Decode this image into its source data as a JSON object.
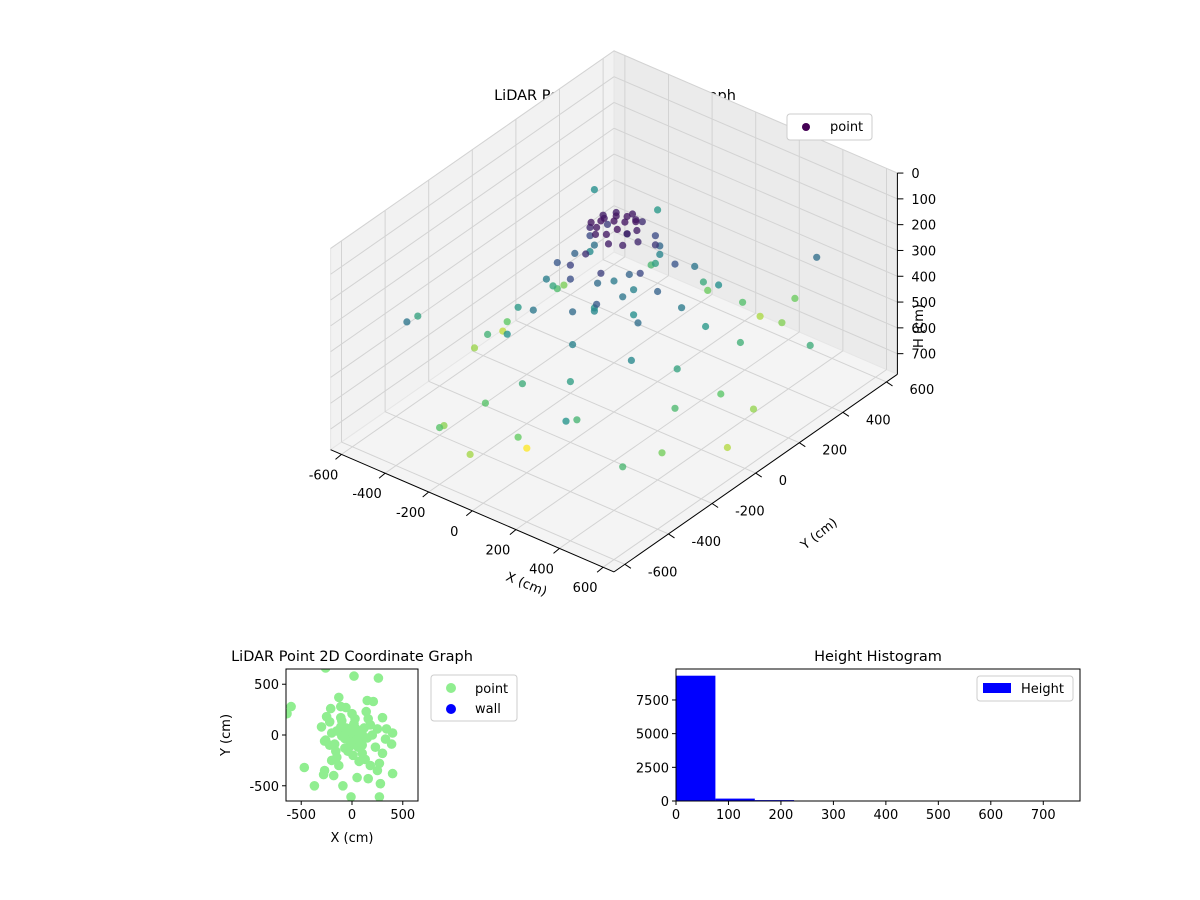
{
  "chart_data": [
    {
      "type": "scatter3d",
      "title": "LiDAR Point 3D Coordinate Graph",
      "xlabel": "X (cm)",
      "ylabel": "Y (cm)",
      "zlabel": "H (cm)",
      "xlim": [
        -650,
        650
      ],
      "ylim": [
        -650,
        650
      ],
      "zlim": [
        0,
        780
      ],
      "z_inverted": true,
      "xticks": [
        -600,
        -400,
        -200,
        0,
        200,
        400,
        600
      ],
      "yticks": [
        -600,
        -400,
        -200,
        0,
        200,
        400,
        600
      ],
      "zticks": [
        0,
        100,
        200,
        300,
        400,
        500,
        600,
        700
      ],
      "grid": true,
      "colormap": "viridis",
      "legend": {
        "placement": "top-right",
        "entries": [
          {
            "label": "point",
            "color": "#440154"
          }
        ]
      },
      "series": [
        {
          "name": "point",
          "points": [
            [
              0,
              0,
              40
            ],
            [
              30,
              20,
              45
            ],
            [
              -25,
              35,
              50
            ],
            [
              45,
              -30,
              38
            ],
            [
              -40,
              -20,
              42
            ],
            [
              10,
              50,
              48
            ],
            [
              -55,
              10,
              55
            ],
            [
              60,
              40,
              44
            ],
            [
              20,
              -55,
              52
            ],
            [
              -30,
              -50,
              46
            ],
            [
              70,
              -10,
              58
            ],
            [
              -70,
              -35,
              50
            ],
            [
              35,
              65,
              60
            ],
            [
              -15,
              -70,
              56
            ],
            [
              80,
              25,
              62
            ],
            [
              -80,
              30,
              64
            ],
            [
              5,
              80,
              58
            ],
            [
              50,
              -75,
              66
            ],
            [
              -60,
              70,
              70
            ],
            [
              90,
              -50,
              72
            ],
            [
              100,
              10,
              90
            ],
            [
              -100,
              -10,
              95
            ],
            [
              20,
              110,
              100
            ],
            [
              -20,
              -110,
              110
            ],
            [
              120,
              70,
              130
            ],
            [
              -110,
              80,
              140
            ],
            [
              60,
              -120,
              150
            ],
            [
              -70,
              -130,
              160
            ],
            [
              150,
              -30,
              170
            ],
            [
              -150,
              40,
              175
            ],
            [
              30,
              160,
              180
            ],
            [
              -40,
              -160,
              185
            ],
            [
              180,
              100,
              200
            ],
            [
              -170,
              -90,
              210
            ],
            [
              100,
              -180,
              220
            ],
            [
              -110,
              170,
              230
            ],
            [
              200,
              0,
              240
            ],
            [
              -200,
              20,
              250
            ],
            [
              0,
              210,
              260
            ],
            [
              10,
              -200,
              270
            ],
            [
              230,
              -120,
              280
            ],
            [
              -220,
              130,
              290
            ],
            [
              140,
              230,
              300
            ],
            [
              -150,
              -220,
              310
            ],
            [
              250,
              60,
              320
            ],
            [
              -260,
              -50,
              330
            ],
            [
              70,
              -260,
              340
            ],
            [
              -60,
              270,
              350
            ],
            [
              280,
              -200,
              360
            ],
            [
              -290,
              180,
              370
            ],
            [
              200,
              280,
              380
            ],
            [
              -210,
              -280,
              390
            ],
            [
              40,
              30,
              250
            ],
            [
              -35,
              -40,
              270
            ],
            [
              60,
              -20,
              300
            ],
            [
              -50,
              50,
              320
            ],
            [
              20,
              70,
              340
            ],
            [
              -25,
              -65,
              360
            ],
            [
              80,
              10,
              380
            ],
            [
              -75,
              -15,
              395
            ],
            [
              300,
              120,
              410
            ],
            [
              -320,
              -120,
              420
            ],
            [
              120,
              -320,
              430
            ],
            [
              -130,
              320,
              440
            ],
            [
              350,
              -60,
              450
            ],
            [
              -350,
              70,
              460
            ],
            [
              50,
              360,
              470
            ],
            [
              -60,
              -360,
              480
            ],
            [
              380,
              200,
              490
            ],
            [
              -380,
              -200,
              500
            ],
            [
              210,
              -380,
              510
            ],
            [
              -220,
              390,
              520
            ],
            [
              420,
              -140,
              530
            ],
            [
              -410,
              150,
              540
            ],
            [
              160,
              430,
              550
            ],
            [
              -170,
              -420,
              560
            ],
            [
              450,
              40,
              570
            ],
            [
              -460,
              -30,
              580
            ],
            [
              30,
              -470,
              590
            ],
            [
              -40,
              470,
              600
            ],
            [
              480,
              -260,
              610
            ],
            [
              -490,
              260,
              620
            ],
            [
              270,
              500,
              630
            ],
            [
              -280,
              -500,
              640
            ],
            [
              520,
              120,
              650
            ],
            [
              -530,
              -110,
              660
            ],
            [
              -120,
              -540,
              670
            ],
            [
              130,
              540,
              680
            ],
            [
              560,
              -40,
              690
            ],
            [
              -560,
              50,
              700
            ],
            [
              300,
              -520,
              400
            ],
            [
              -310,
              510,
              410
            ],
            [
              -600,
              -300,
              450
            ],
            [
              600,
              300,
              480
            ],
            [
              -540,
              450,
              380
            ],
            [
              520,
              -480,
              520
            ],
            [
              -200,
              -600,
              560
            ],
            [
              240,
              590,
              600
            ],
            [
              -450,
              -500,
              300
            ],
            [
              470,
              460,
              280
            ],
            [
              -100,
              -300,
              780
            ]
          ]
        }
      ]
    },
    {
      "type": "scatter",
      "title": "LiDAR Point 2D Coordinate Graph",
      "xlabel": "X (cm)",
      "ylabel": "Y (cm)",
      "xlim": [
        -650,
        650
      ],
      "ylim": [
        -650,
        650
      ],
      "xticks": [
        -500,
        0,
        500
      ],
      "yticks": [
        -500,
        0,
        500
      ],
      "legend": {
        "placement": "outside-right",
        "entries": [
          {
            "label": "point",
            "color": "#90ee90"
          },
          {
            "label": "wall",
            "color": "#0000ff"
          }
        ]
      },
      "series": [
        {
          "name": "point",
          "color": "#90ee90",
          "points": [
            [
              -600,
              280
            ],
            [
              -640,
              210
            ],
            [
              -260,
              660
            ],
            [
              260,
              560
            ],
            [
              20,
              580
            ],
            [
              -470,
              -320
            ],
            [
              -370,
              -500
            ],
            [
              -280,
              -390
            ],
            [
              -270,
              -350
            ],
            [
              -10,
              -610
            ],
            [
              270,
              -610
            ],
            [
              400,
              -380
            ],
            [
              280,
              -480
            ],
            [
              390,
              -90
            ],
            [
              400,
              20
            ],
            [
              -250,
              180
            ],
            [
              -270,
              -60
            ],
            [
              -90,
              -500
            ],
            [
              50,
              -420
            ],
            [
              160,
              -430
            ],
            [
              250,
              -350
            ],
            [
              300,
              170
            ],
            [
              340,
              60
            ],
            [
              -180,
              -400
            ],
            [
              -130,
              370
            ],
            [
              -110,
              280
            ],
            [
              150,
              340
            ],
            [
              210,
              330
            ],
            [
              330,
              -40
            ],
            [
              270,
              -280
            ],
            [
              -200,
              -250
            ],
            [
              -210,
              260
            ],
            [
              0,
              0
            ],
            [
              30,
              20
            ],
            [
              -25,
              35
            ],
            [
              45,
              -30
            ],
            [
              -40,
              -20
            ],
            [
              10,
              50
            ],
            [
              -55,
              10
            ],
            [
              60,
              40
            ],
            [
              20,
              -55
            ],
            [
              -30,
              -50
            ],
            [
              70,
              -10
            ],
            [
              -70,
              -35
            ],
            [
              35,
              65
            ],
            [
              -15,
              -70
            ],
            [
              80,
              25
            ],
            [
              -80,
              30
            ],
            [
              5,
              80
            ],
            [
              50,
              -75
            ],
            [
              -60,
              70
            ],
            [
              90,
              -50
            ],
            [
              100,
              10
            ],
            [
              -100,
              -10
            ],
            [
              20,
              110
            ],
            [
              -20,
              -110
            ],
            [
              120,
              70
            ],
            [
              -110,
              80
            ],
            [
              60,
              -120
            ],
            [
              -70,
              -130
            ],
            [
              150,
              -30
            ],
            [
              -150,
              40
            ],
            [
              30,
              160
            ],
            [
              -40,
              -160
            ],
            [
              180,
              100
            ],
            [
              -170,
              -90
            ],
            [
              100,
              -180
            ],
            [
              -110,
              170
            ],
            [
              200,
              0
            ],
            [
              -200,
              20
            ],
            [
              0,
              210
            ],
            [
              10,
              -200
            ],
            [
              230,
              -120
            ],
            [
              -220,
              130
            ],
            [
              140,
              230
            ],
            [
              -150,
              -220
            ],
            [
              250,
              60
            ],
            [
              -260,
              -50
            ],
            [
              70,
              -260
            ],
            [
              -60,
              270
            ],
            [
              -130,
              -300
            ],
            [
              130,
              -240
            ],
            [
              -300,
              80
            ],
            [
              300,
              -180
            ],
            [
              180,
              -300
            ],
            [
              -100,
              140
            ],
            [
              100,
              -100
            ],
            [
              -160,
              -160
            ],
            [
              160,
              160
            ],
            [
              -220,
              -100
            ]
          ]
        },
        {
          "name": "wall",
          "color": "#0000ff",
          "points": []
        }
      ]
    },
    {
      "type": "histogram",
      "title": "Height Histogram",
      "xlim": [
        0,
        770
      ],
      "ylim": [
        0,
        9800
      ],
      "xticks": [
        0,
        100,
        200,
        300,
        400,
        500,
        600,
        700
      ],
      "yticks": [
        0,
        2500,
        5000,
        7500
      ],
      "legend": {
        "placement": "top-right",
        "entries": [
          {
            "label": "Height",
            "color": "#0000ff"
          }
        ]
      },
      "series": [
        {
          "name": "Height",
          "color": "#0000ff",
          "bin_width": 75,
          "bins": [
            0,
            75,
            150,
            225,
            300,
            375,
            450,
            525,
            600,
            675
          ],
          "values": [
            9300,
            180,
            70,
            40,
            8,
            5,
            4,
            3,
            2,
            2
          ]
        }
      ]
    }
  ]
}
